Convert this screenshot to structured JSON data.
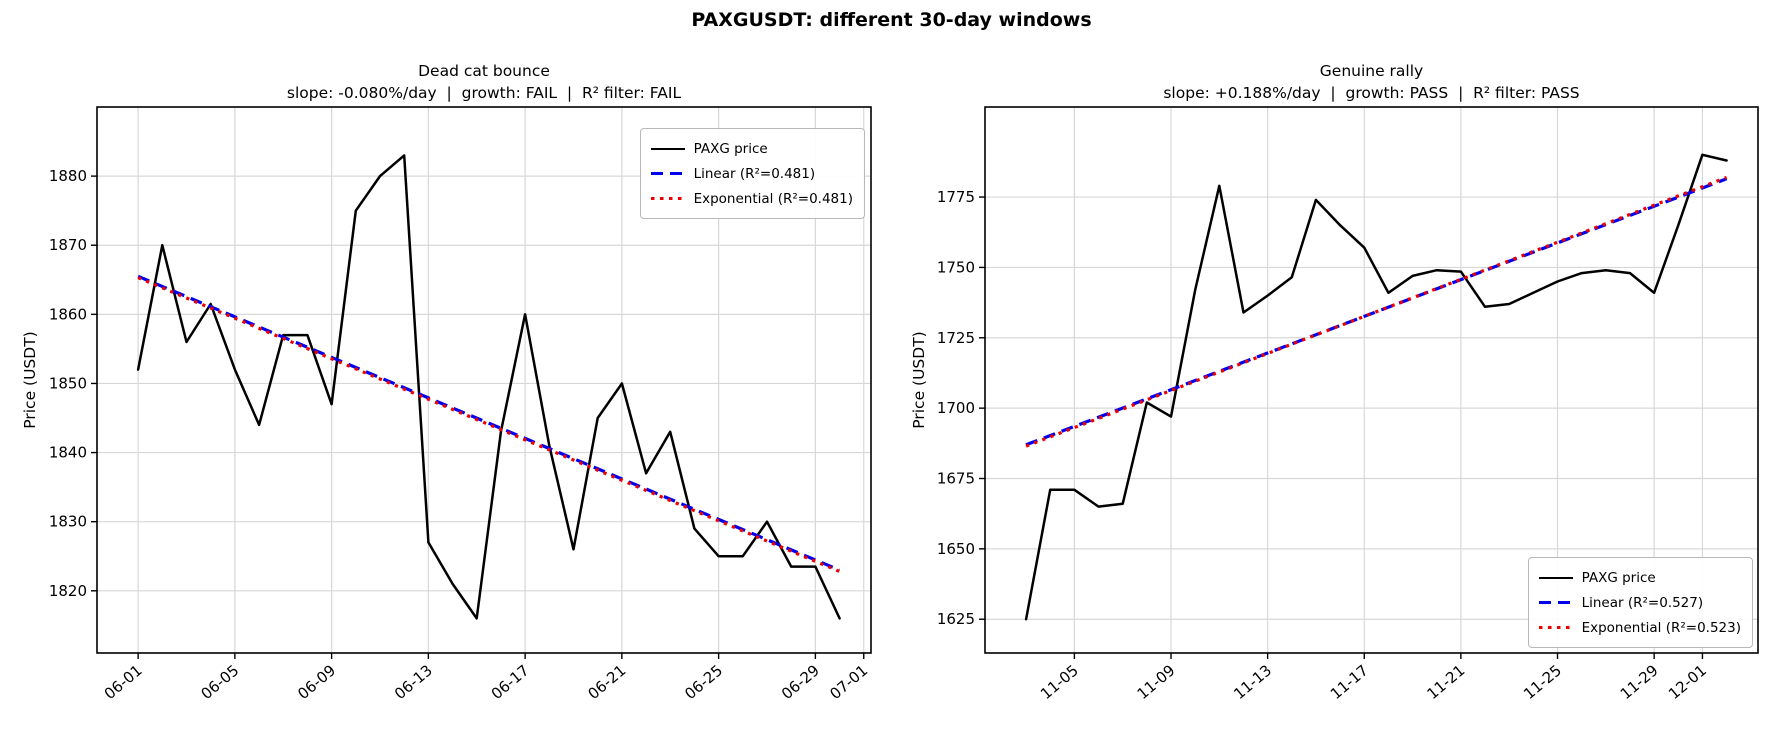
{
  "title": "PAXGUSDT: different 30-day windows",
  "chart_data": [
    {
      "type": "line",
      "title": "Dead cat bounce",
      "subtitle": "slope: -0.080%/day  |  growth: FAIL  |  R² filter: FAIL",
      "xlabel": "",
      "ylabel": "Price (USDT)",
      "grid": true,
      "legend_position": "upper right",
      "ylim": [
        1811,
        1890
      ],
      "y_ticks": [
        1820,
        1830,
        1840,
        1850,
        1860,
        1870,
        1880
      ],
      "x_ticks": {
        "labels": [
          "06-01",
          "06-05",
          "06-09",
          "06-13",
          "06-17",
          "06-21",
          "06-25",
          "06-29",
          "07-01"
        ],
        "day_index": [
          0,
          4,
          8,
          12,
          16,
          20,
          24,
          28,
          30
        ]
      },
      "x": [
        "06-01",
        "06-02",
        "06-03",
        "06-04",
        "06-05",
        "06-06",
        "06-07",
        "06-08",
        "06-09",
        "06-10",
        "06-11",
        "06-12",
        "06-13",
        "06-14",
        "06-15",
        "06-16",
        "06-17",
        "06-18",
        "06-19",
        "06-20",
        "06-21",
        "06-22",
        "06-23",
        "06-24",
        "06-25",
        "06-26",
        "06-27",
        "06-28",
        "06-29",
        "06-30"
      ],
      "series": [
        {
          "name": "PAXG price",
          "color": "#000000",
          "style": "solid",
          "values": [
            1852,
            1870,
            1856,
            1861.5,
            1852,
            1844,
            1857,
            1857,
            1847,
            1875,
            1880,
            1883,
            1827,
            1821,
            1816,
            1843,
            1860,
            1841,
            1826,
            1845,
            1850,
            1837,
            1843,
            1829,
            1825,
            1825,
            1830,
            1823.5,
            1823.5,
            1816
          ]
        },
        {
          "name": "Linear (R²=0.481)",
          "color": "#0000ee",
          "style": "dashed",
          "trend": {
            "start": 1865.5,
            "end": 1823.0
          }
        },
        {
          "name": "Exponential (R²=0.481)",
          "color": "#ee0000",
          "style": "dotted",
          "trend": {
            "start": 1865.3,
            "end": 1822.8
          }
        }
      ]
    },
    {
      "type": "line",
      "title": "Genuine rally",
      "subtitle": "slope: +0.188%/day  |  growth: PASS  |  R² filter: PASS",
      "xlabel": "",
      "ylabel": "Price (USDT)",
      "grid": true,
      "legend_position": "lower right",
      "ylim": [
        1613,
        1807
      ],
      "y_ticks": [
        1625,
        1650,
        1675,
        1700,
        1725,
        1750,
        1775
      ],
      "x_ticks": {
        "labels": [
          "11-05",
          "11-09",
          "11-13",
          "11-17",
          "11-21",
          "11-25",
          "11-29",
          "12-01"
        ],
        "day_index": [
          2,
          6,
          10,
          14,
          18,
          22,
          26,
          28
        ]
      },
      "x": [
        "11-03",
        "11-04",
        "11-05",
        "11-06",
        "11-07",
        "11-08",
        "11-09",
        "11-10",
        "11-11",
        "11-12",
        "11-13",
        "11-14",
        "11-15",
        "11-16",
        "11-17",
        "11-18",
        "11-19",
        "11-20",
        "11-21",
        "11-22",
        "11-23",
        "11-24",
        "11-25",
        "11-26",
        "11-27",
        "11-28",
        "11-29",
        "11-30",
        "12-01",
        "12-02"
      ],
      "series": [
        {
          "name": "PAXG price",
          "color": "#000000",
          "style": "solid",
          "values": [
            1625,
            1671,
            1671,
            1665,
            1666,
            1702,
            1697,
            1742,
            1779,
            1734,
            1740,
            1746.5,
            1774,
            1765,
            1757,
            1741,
            1747,
            1749,
            1748.5,
            1736,
            1737,
            1741,
            1745,
            1748,
            1749,
            1748,
            1741,
            1765,
            1790,
            1788
          ]
        },
        {
          "name": "Linear (R²=0.527)",
          "color": "#0000ee",
          "style": "dashed",
          "trend": {
            "start": 1687.0,
            "end": 1781.5
          }
        },
        {
          "name": "Exponential (R²=0.523)",
          "color": "#ee0000",
          "style": "dotted",
          "trend": {
            "start": 1686.5,
            "end": 1782.0
          }
        }
      ]
    }
  ]
}
